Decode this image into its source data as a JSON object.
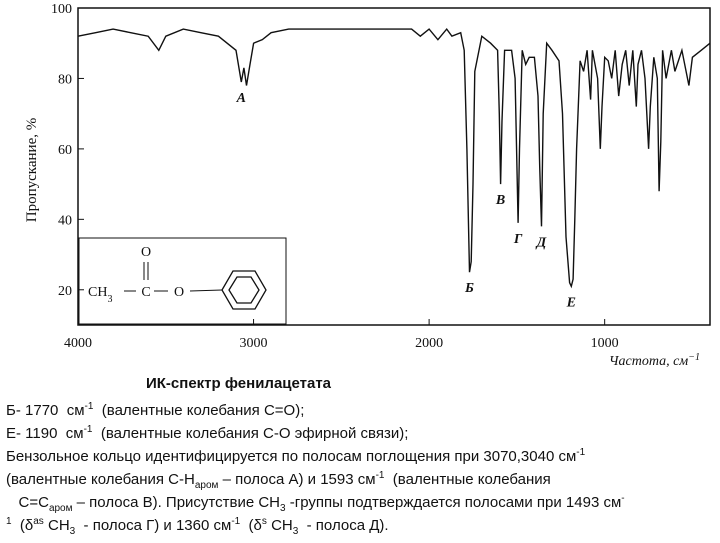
{
  "chart_data": {
    "type": "line",
    "ylabel": "Пропускание, %",
    "xlabel": [
      "Частота, см",
      {
        "sup": "−1"
      }
    ],
    "xlim": [
      4000,
      400
    ],
    "ylim": [
      10,
      100
    ],
    "xticks": [
      4000,
      3000,
      2000,
      1000
    ],
    "yticks": [
      20,
      40,
      60,
      80,
      100
    ],
    "grid": false,
    "color": "#111111",
    "x": [
      4000,
      3900,
      3800,
      3700,
      3600,
      3540,
      3500,
      3400,
      3300,
      3200,
      3100,
      3070,
      3055,
      3040,
      3020,
      3000,
      2950,
      2900,
      2800,
      2700,
      2600,
      2500,
      2400,
      2300,
      2200,
      2100,
      2050,
      2000,
      1950,
      1900,
      1870,
      1820,
      1800,
      1785,
      1770,
      1760,
      1750,
      1740,
      1700,
      1650,
      1610,
      1600,
      1593,
      1585,
      1570,
      1530,
      1510,
      1493,
      1485,
      1470,
      1450,
      1430,
      1400,
      1380,
      1370,
      1360,
      1350,
      1330,
      1300,
      1260,
      1240,
      1220,
      1200,
      1190,
      1180,
      1170,
      1160,
      1140,
      1120,
      1100,
      1080,
      1070,
      1040,
      1025,
      1015,
      1000,
      980,
      960,
      940,
      920,
      900,
      880,
      860,
      840,
      820,
      810,
      790,
      770,
      750,
      740,
      720,
      700,
      690,
      680,
      670,
      650,
      620,
      600,
      560,
      520,
      500,
      450,
      400
    ],
    "values": [
      92,
      93,
      94,
      93,
      92,
      88,
      92,
      94,
      93,
      92,
      88,
      79,
      83,
      78,
      84,
      90,
      91,
      93,
      94,
      94,
      94,
      94,
      94,
      94,
      94,
      94,
      92,
      94,
      91,
      94,
      92,
      93,
      88,
      60,
      25,
      28,
      50,
      82,
      92,
      90,
      88,
      70,
      50,
      68,
      88,
      88,
      80,
      39,
      60,
      88,
      84,
      86,
      86,
      75,
      55,
      38,
      70,
      90,
      88,
      85,
      70,
      35,
      22,
      21,
      23,
      40,
      60,
      85,
      82,
      88,
      74,
      88,
      80,
      60,
      72,
      86,
      85,
      80,
      88,
      75,
      84,
      88,
      78,
      88,
      72,
      84,
      88,
      80,
      60,
      72,
      86,
      80,
      48,
      62,
      88,
      80,
      88,
      82,
      88,
      78,
      86,
      88,
      90
    ],
    "annotations": [
      {
        "text": "А",
        "x": 3070
      },
      {
        "text": "Б",
        "x": 1770
      },
      {
        "text": "В",
        "x": 1593
      },
      {
        "text": "Г",
        "x": 1493
      },
      {
        "text": "Д",
        "x": 1360
      },
      {
        "text": "Е",
        "x": 1190
      }
    ]
  },
  "structure": {
    "o_top": "O",
    "ch3": [
      "CH",
      {
        "sub": "3"
      }
    ],
    "c": "C",
    "o": "O"
  },
  "caption": {
    "title": "ИК-спектр фенилацетата",
    "lines": [
      [
        "Б- 1770  см",
        {
          "sup": "-1"
        },
        "  (валентные колебания С=О);"
      ],
      [
        "Е- 1190  см",
        {
          "sup": "-1"
        },
        "  (валентные колебания С-О эфирной связи);"
      ],
      [
        "Бензольное кольцо идентифицируется по полосам поглощения при 3070,3040 см",
        {
          "sup": "-1"
        }
      ],
      [
        "(валентные колебания С-Н",
        {
          "sub": "аром"
        },
        " – полоса А) и 1593 см",
        {
          "sup": "-1"
        },
        "  (валентные колебания"
      ],
      [
        "   С=С",
        {
          "sub": "аром"
        },
        " – полоса В). Присутствие СН",
        {
          "sub": "3"
        },
        " -группы подтверждается полосами при 1493 см",
        {
          "sup": "-"
        }
      ],
      [
        {
          "sup": "1"
        },
        "  (δ",
        {
          "sup": "as"
        },
        " CH",
        {
          "sub": "3"
        },
        "  - полоса Г) и 1360 см",
        {
          "sup": "-1"
        },
        "  (δ",
        {
          "sup": "s"
        },
        " CH",
        {
          "sub": "3"
        },
        "  - полоса Д)."
      ]
    ]
  }
}
